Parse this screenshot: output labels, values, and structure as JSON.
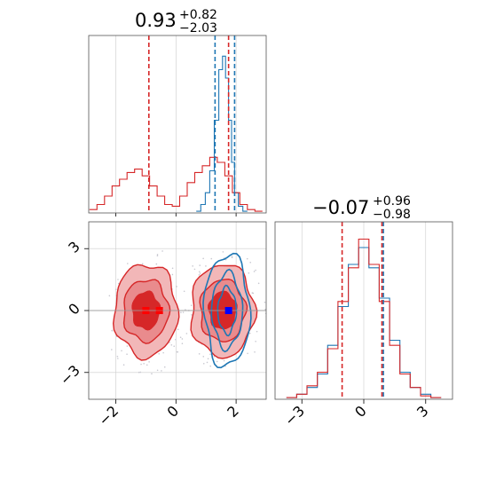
{
  "chart_data": {
    "type": "corner",
    "colors": {
      "blue": "#1f77b4",
      "red": "#d62728",
      "blue_marker": "#0000ff",
      "red_marker": "#ff0000"
    },
    "panels": [
      {
        "id": "param1-hist",
        "type": "histogram",
        "title": {
          "value": "0.93",
          "plus": "+0.82",
          "minus": "−2.03"
        },
        "xlim": [
          -2.9,
          3.0
        ],
        "grid_x": [
          -2,
          0,
          2
        ],
        "series": [
          {
            "name": "",
            "color": "#1f77b4",
            "x": [
              0.75,
              0.9,
              1.05,
              1.2,
              1.35,
              1.5,
              1.6,
              1.7,
              1.8,
              1.9,
              2.0,
              2.15,
              2.3
            ],
            "y": [
              0.01,
              0.05,
              0.12,
              0.25,
              0.55,
              0.85,
              0.93,
              0.8,
              0.55,
              0.3,
              0.12,
              0.04,
              0.01
            ]
          },
          {
            "name": "",
            "color": "#d62728",
            "x": [
              -2.75,
              -2.5,
              -2.25,
              -2.0,
              -1.75,
              -1.5,
              -1.25,
              -1.0,
              -0.75,
              -0.5,
              -0.25,
              0.0,
              0.25,
              0.5,
              0.75,
              1.0,
              1.25,
              1.5,
              1.75,
              2.0,
              2.25,
              2.5,
              2.75
            ],
            "y": [
              0.02,
              0.05,
              0.1,
              0.16,
              0.2,
              0.24,
              0.26,
              0.22,
              0.16,
              0.1,
              0.05,
              0.04,
              0.1,
              0.18,
              0.24,
              0.28,
              0.33,
              0.3,
              0.22,
              0.12,
              0.05,
              0.02,
              0.01
            ]
          }
        ],
        "quantiles": [
          {
            "color": "#1f77b4",
            "values": [
              1.3,
              1.95
            ]
          },
          {
            "color": "#d62728",
            "values": [
              -0.9,
              1.75
            ]
          }
        ]
      },
      {
        "id": "param2-hist",
        "type": "histogram",
        "title": {
          "value": "−0.07",
          "plus": "+0.96",
          "minus": "−0.98"
        },
        "xlim": [
          -4.3,
          4.3
        ],
        "xticks": [
          -3,
          0,
          3
        ],
        "series": [
          {
            "name": "",
            "color": "#1f77b4",
            "x": [
              -3.5,
              -3.0,
              -2.5,
              -2.0,
              -1.5,
              -1.0,
              -0.5,
              0.0,
              0.5,
              1.0,
              1.5,
              2.0,
              2.5,
              3.0,
              3.5
            ],
            "y": [
              0.01,
              0.03,
              0.07,
              0.15,
              0.32,
              0.55,
              0.8,
              0.9,
              0.78,
              0.6,
              0.35,
              0.16,
              0.07,
              0.03,
              0.01
            ]
          },
          {
            "name": "",
            "color": "#d62728",
            "x": [
              -3.5,
              -3.0,
              -2.5,
              -2.0,
              -1.5,
              -1.0,
              -0.5,
              0.0,
              0.5,
              1.0,
              1.5,
              2.0,
              2.5,
              3.0,
              3.5
            ],
            "y": [
              0.01,
              0.03,
              0.08,
              0.16,
              0.3,
              0.58,
              0.78,
              0.95,
              0.8,
              0.58,
              0.32,
              0.15,
              0.07,
              0.02,
              0.01
            ]
          }
        ],
        "quantiles": [
          {
            "color": "#1f77b4",
            "values": [
              0.95
            ]
          },
          {
            "color": "#d62728",
            "values": [
              -1.05,
              0.88
            ]
          }
        ]
      },
      {
        "id": "joint",
        "type": "contour",
        "xlim": [
          -2.9,
          3.0
        ],
        "ylim": [
          -4.3,
          4.3
        ],
        "xticks": [
          -2,
          0,
          2
        ],
        "yticks": [
          -3,
          0,
          3
        ],
        "red_modes": [
          {
            "cx": -1.0,
            "cy": 0.0,
            "rx": [
              1.05,
              0.75,
              0.45
            ],
            "ry": [
              2.25,
              1.5,
              0.9
            ]
          },
          {
            "cx": 1.55,
            "cy": 0.0,
            "rx": [
              1.05,
              0.75,
              0.45
            ],
            "ry": [
              2.25,
              1.5,
              0.9
            ]
          }
        ],
        "blue_mode": {
          "cx": 1.7,
          "cy": 0.0,
          "rx": [
            0.75,
            0.5,
            0.3
          ],
          "ry": [
            2.7,
            1.8,
            1.1
          ]
        },
        "markers": [
          {
            "color": "#ff0000",
            "x": -1.0,
            "y": 0.0
          },
          {
            "color": "#ff0000",
            "x": -0.55,
            "y": 0.0
          },
          {
            "color": "#0000ff",
            "x": 1.75,
            "y": 0.0
          }
        ]
      }
    ]
  }
}
